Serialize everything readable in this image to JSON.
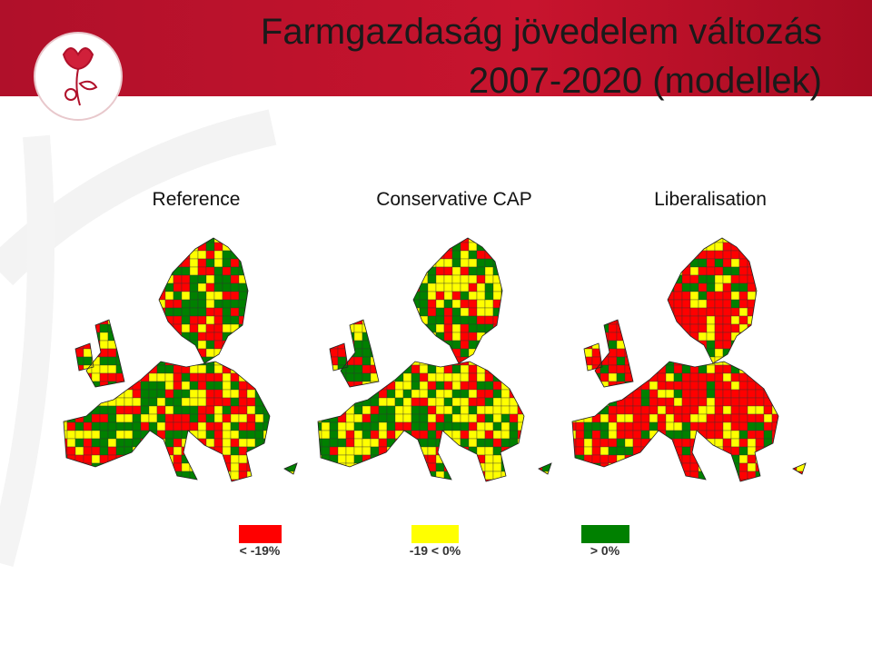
{
  "header": {
    "title_lines": [
      "Farmgazdaság jövedelem változás",
      "2007-2020 (modellek)"
    ]
  },
  "maps": [
    {
      "title": "Reference"
    },
    {
      "title": "Conservative CAP"
    },
    {
      "title": "Liberalisation"
    }
  ],
  "legend": [
    {
      "label": "< -19%",
      "color": "#ff0000"
    },
    {
      "label": "-19 < 0%",
      "color": "#ffff00"
    },
    {
      "label": "> 0%",
      "color": "#008000"
    }
  ]
}
